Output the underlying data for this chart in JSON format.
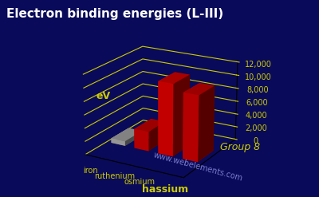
{
  "title": "Electron binding energies (L-III)",
  "elements": [
    "iron",
    "ruthenium",
    "osmium",
    "hassium"
  ],
  "values": [
    707,
    2967,
    10871,
    9900
  ],
  "bar_colors": [
    "#aaaaaa",
    "#cc0000",
    "#dd0000",
    "#cc0000"
  ],
  "ylabel": "eV",
  "xlabel": "Group 8",
  "ylim": [
    0,
    12000
  ],
  "yticks": [
    0,
    2000,
    4000,
    6000,
    8000,
    10000,
    12000
  ],
  "ytick_labels": [
    "0",
    "2,000",
    "4,000",
    "6,000",
    "8,000",
    "10,000",
    "12,000"
  ],
  "background_color": "#0a0a5a",
  "grid_color": "#cccc00",
  "title_color": "#ffffff",
  "label_color": "#cccc00",
  "watermark": "www.webelements.com",
  "title_fontsize": 11,
  "label_fontsize": 9,
  "elem_fontsizes": [
    7,
    7,
    7,
    9
  ],
  "elem_fontweights": [
    "normal",
    "normal",
    "normal",
    "bold"
  ]
}
